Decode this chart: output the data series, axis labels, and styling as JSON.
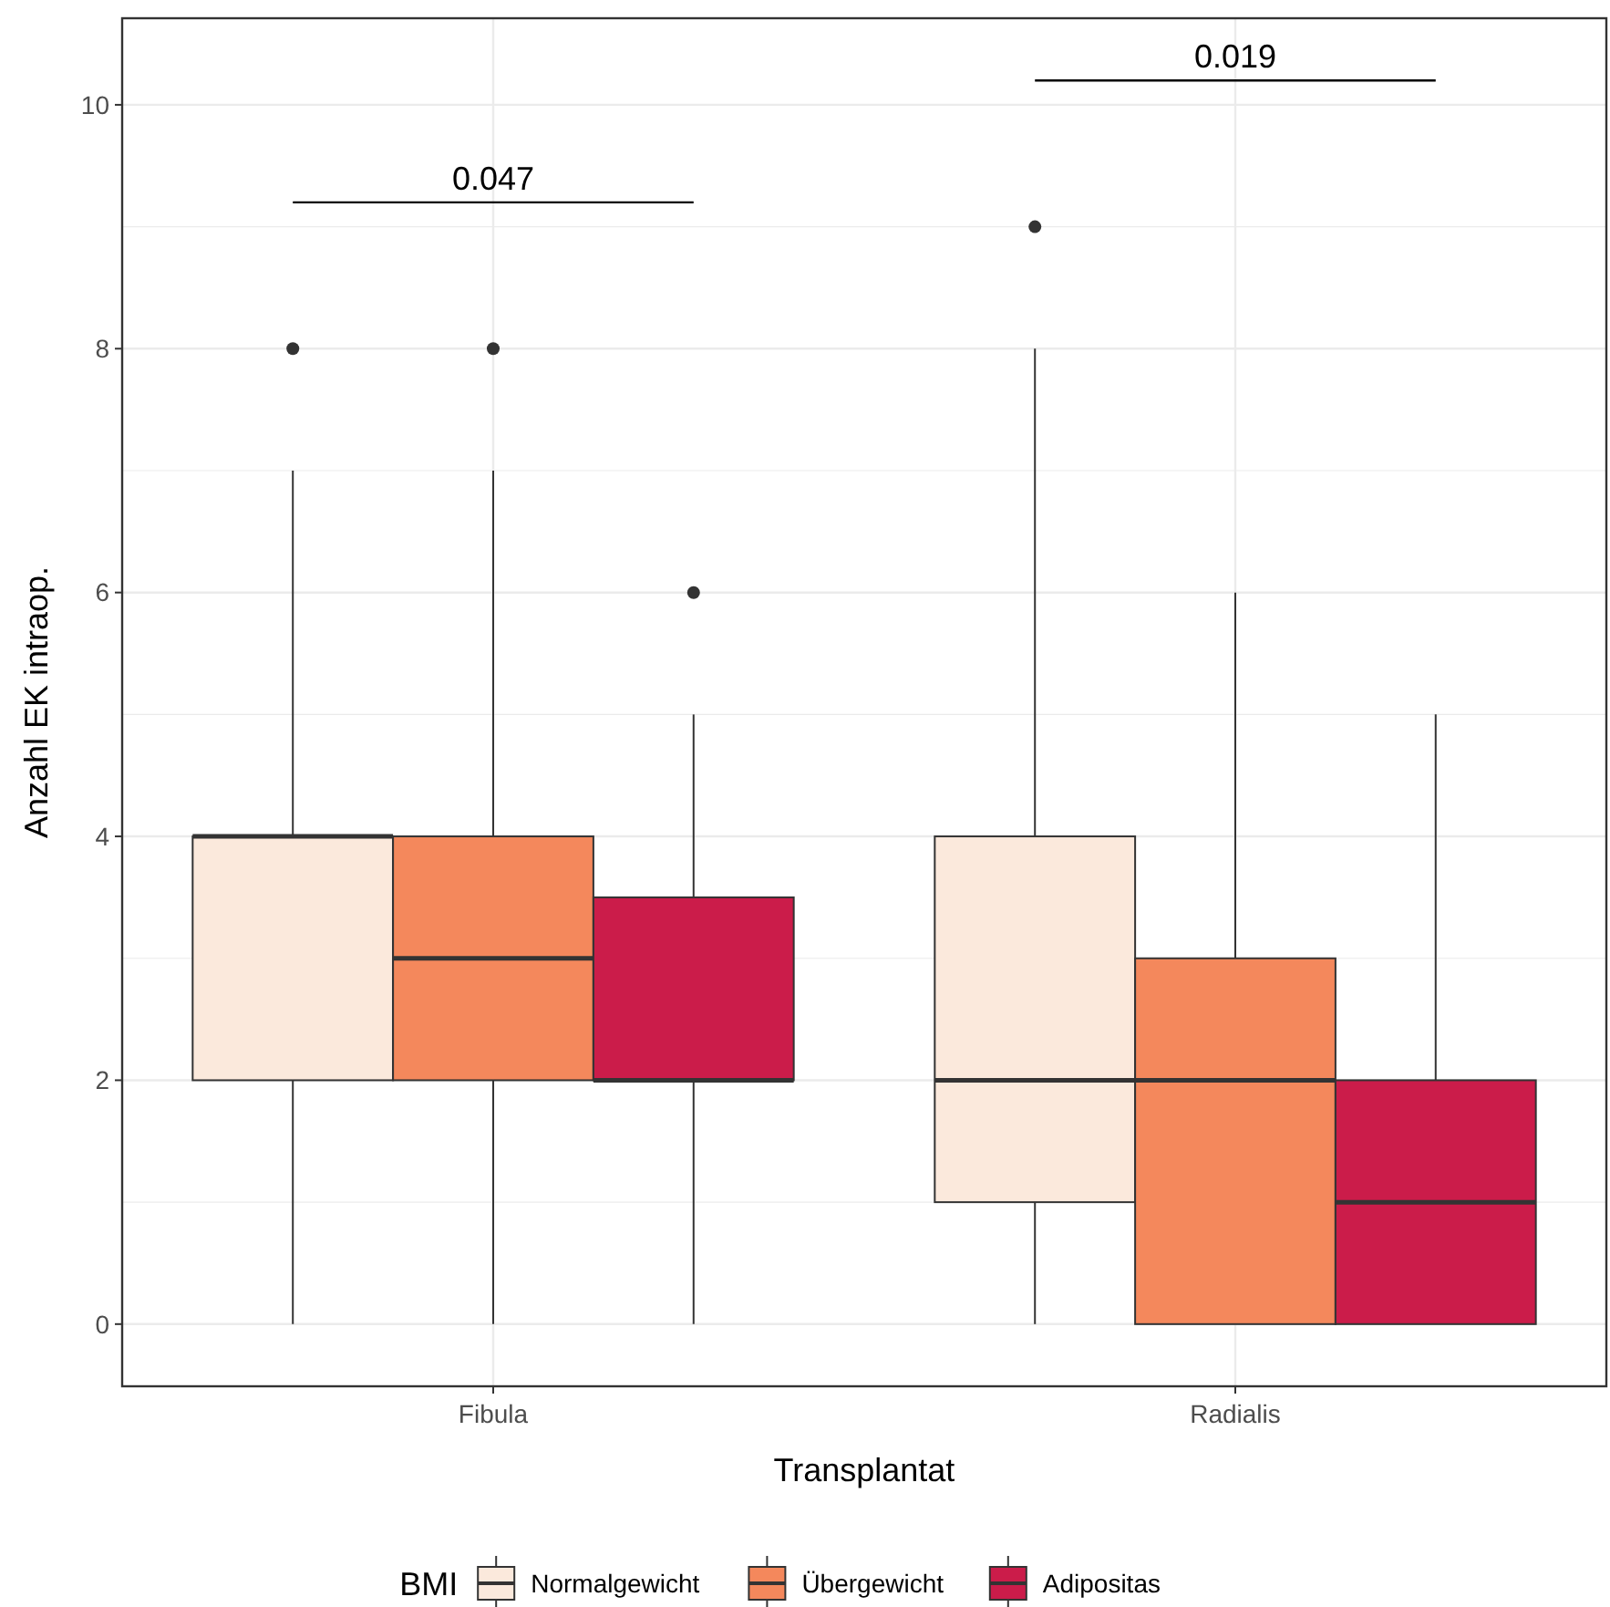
{
  "chart_data": {
    "type": "box",
    "xlabel": "Transplantat",
    "ylabel": "Anzahl EK intraop.",
    "legend_title": "BMI",
    "categories": [
      "Fibula",
      "Radialis"
    ],
    "ylim": [
      -0.51,
      10.71
    ],
    "yticks": [
      0,
      {
        "value": 1,
        "label": null
      },
      2,
      {
        "value": 3,
        "label": null
      },
      4,
      {
        "value": 5,
        "label": null
      },
      6,
      {
        "value": 7,
        "label": null
      },
      8,
      {
        "value": 9,
        "label": null
      },
      10
    ],
    "grid": true,
    "legend": "bottom",
    "series": [
      {
        "name": "Normalgewicht",
        "color": "#fbe9dc",
        "boxes": [
          {
            "low": 0,
            "q1": 2,
            "median": 4,
            "q3": 4,
            "high": 7,
            "outliers": [
              8
            ]
          },
          {
            "low": 0,
            "q1": 1,
            "median": 2,
            "q3": 4,
            "high": 8,
            "outliers": [
              9
            ]
          }
        ]
      },
      {
        "name": "Übergewicht",
        "color": "#f4885c",
        "boxes": [
          {
            "low": 0,
            "q1": 2,
            "median": 3,
            "q3": 4,
            "high": 7,
            "outliers": [
              8
            ]
          },
          {
            "low": 0,
            "q1": 0,
            "median": 2,
            "q3": 3,
            "high": 6
          }
        ]
      },
      {
        "name": "Adipositas",
        "color": "#cb1c4a",
        "boxes": [
          {
            "low": 0,
            "q1": 2,
            "median": 2,
            "q3": 3.5,
            "high": 5,
            "outliers": [
              6
            ]
          },
          {
            "low": 0,
            "q1": 0,
            "median": 1,
            "q3": 2,
            "high": 5
          }
        ]
      }
    ],
    "annotations": [
      "0.047",
      "0.019"
    ]
  }
}
